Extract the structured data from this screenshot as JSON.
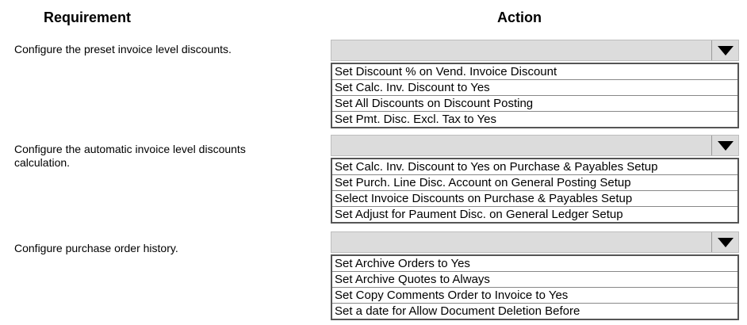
{
  "headers": {
    "requirement": "Requirement",
    "action": "Action"
  },
  "rows": [
    {
      "requirement": "Configure the preset invoice level discounts.",
      "selected": "",
      "options": [
        "Set Discount % on Vend. Invoice Discount",
        "Set Calc. Inv. Discount to Yes",
        "Set All Discounts on Discount Posting",
        "Set Pmt. Disc. Excl. Tax to Yes"
      ]
    },
    {
      "requirement": "Configure the automatic invoice level discounts calculation.",
      "selected": "",
      "options": [
        "Set Calc. Inv. Discount to Yes on Purchase & Payables Setup",
        "Set Purch. Line Disc. Account on General Posting Setup",
        "Select Invoice Discounts on Purchase & Payables Setup",
        "Set Adjust for Paument Disc. on General Ledger Setup"
      ]
    },
    {
      "requirement": "Configure purchase order history.",
      "selected": "",
      "options": [
        "Set Archive Orders to Yes",
        "Set Archive Quotes to Always",
        "Set Copy Comments Order to Invoice to Yes",
        "Set a date for Allow Document Deletion Before"
      ]
    }
  ]
}
